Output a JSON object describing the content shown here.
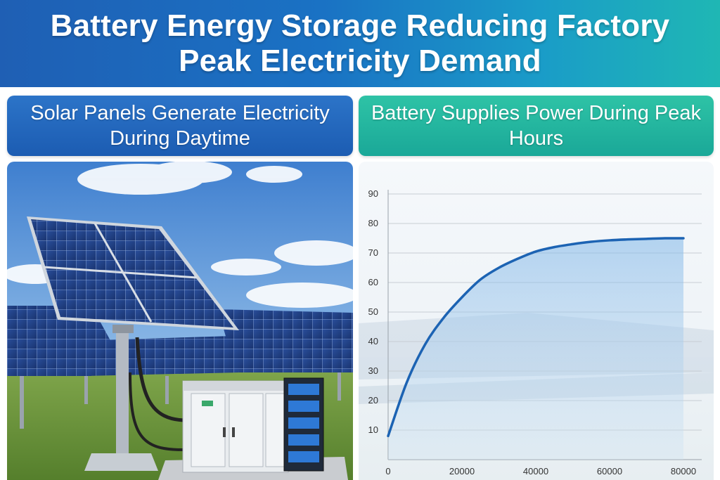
{
  "header": {
    "title": "Battery Energy Storage Reducing Factory Peak Electricity Demand"
  },
  "left_panel": {
    "heading": "Solar Panels Generate Electricity During Daytime",
    "image": "solar-array-with-battery-cabinet"
  },
  "right_panel": {
    "heading": "Battery Supplies Power During Peak Hours"
  },
  "colors": {
    "banner_start": "#1f5fb4",
    "banner_end": "#1fb7b4",
    "left_heading": "#1c5cb2",
    "right_heading": "#1aa898",
    "curve": "#1c63b3"
  },
  "chart_data": {
    "type": "area",
    "title": "",
    "xlabel": "",
    "ylabel": "",
    "xlim": [
      0,
      80000
    ],
    "ylim": [
      0,
      90
    ],
    "x_ticks": [
      "0",
      "20000",
      "40000",
      "60000",
      "80000"
    ],
    "y_ticks": [
      "10",
      "20",
      "30",
      "40",
      "50",
      "60",
      "70",
      "80",
      "90"
    ],
    "grid": true,
    "series": [
      {
        "x": [
          0,
          5000,
          10000,
          15000,
          20000,
          25000,
          30000,
          35000,
          40000,
          45000,
          50000,
          55000,
          60000,
          65000,
          70000,
          75000,
          80000
        ],
        "y": [
          8,
          26,
          39,
          48,
          55,
          61,
          65,
          68,
          70.5,
          72,
          73,
          73.8,
          74.3,
          74.6,
          74.8,
          75,
          75
        ]
      }
    ]
  }
}
